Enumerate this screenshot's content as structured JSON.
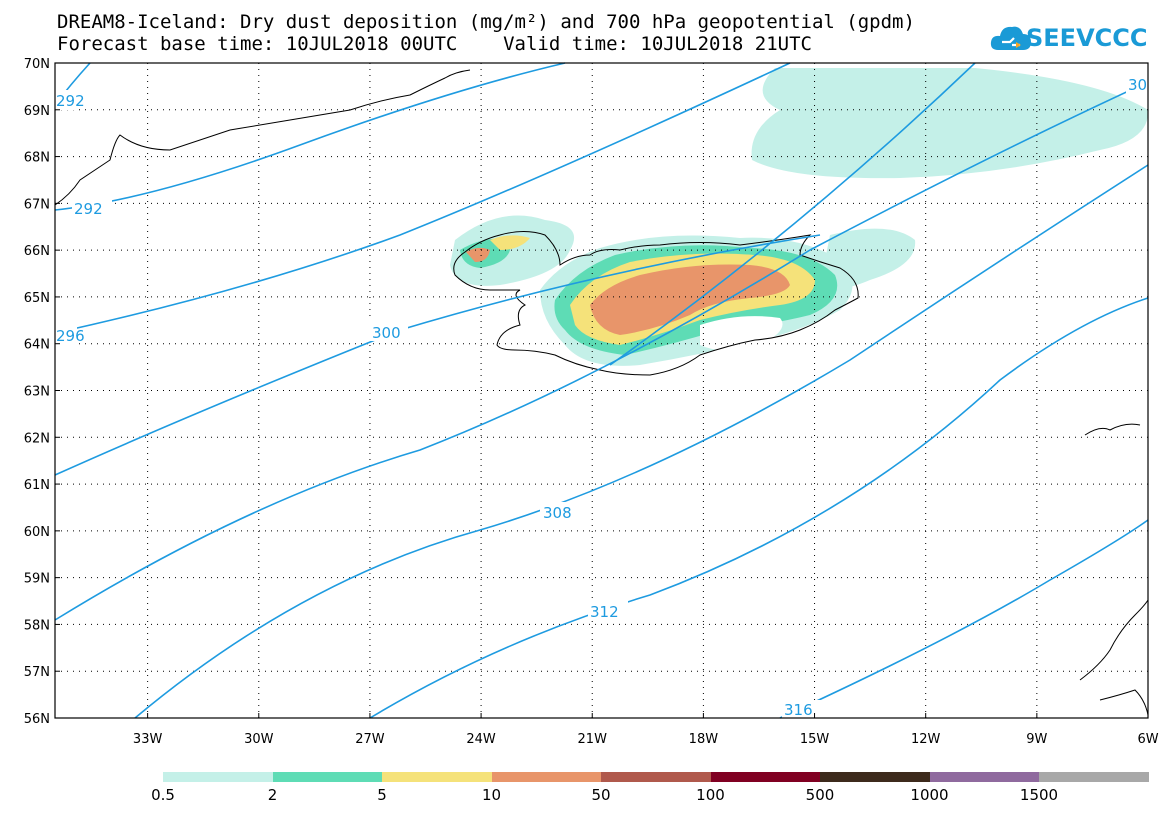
{
  "title": {
    "line1": "DREAM8-Iceland: Dry dust deposition (mg/m²) and 700 hPa geopotential (gpdm)",
    "line2": "Forecast base time: 10JUL2018 00UTC    Valid time: 10JUL2018 21UTC"
  },
  "logo": {
    "text": "SEEVCCC",
    "icon": "cloud-logo-icon"
  },
  "axes": {
    "lat_labels": [
      "70N",
      "69N",
      "68N",
      "67N",
      "66N",
      "65N",
      "64N",
      "63N",
      "62N",
      "61N",
      "60N",
      "59N",
      "58N",
      "57N",
      "56N"
    ],
    "lon_labels": [
      "33W",
      "30W",
      "27W",
      "24W",
      "21W",
      "18W",
      "15W",
      "12W",
      "9W",
      "6W"
    ],
    "lon_range": [
      -35.5,
      -6
    ],
    "lat_range": [
      56,
      70
    ],
    "grid": "dotted"
  },
  "contours": {
    "color": "#1e9be0",
    "labels": [
      "292",
      "292",
      "296",
      "300",
      "308",
      "312",
      "316",
      "30"
    ]
  },
  "colorbar": {
    "colors": [
      "#c4f0e8",
      "#5edcb5",
      "#f5e27a",
      "#e8956a",
      "#b0594c",
      "#800022",
      "#3d2a1c",
      "#8f6a9e",
      "#a8a8a8"
    ],
    "tick_labels": [
      "0.5",
      "2",
      "5",
      "10",
      "50",
      "100",
      "500",
      "1000",
      "1500"
    ]
  },
  "dust_colors": {
    "c1": "#c4f0e8",
    "c2": "#5edcb5",
    "c3": "#f5e27a",
    "c4": "#e8956a"
  }
}
